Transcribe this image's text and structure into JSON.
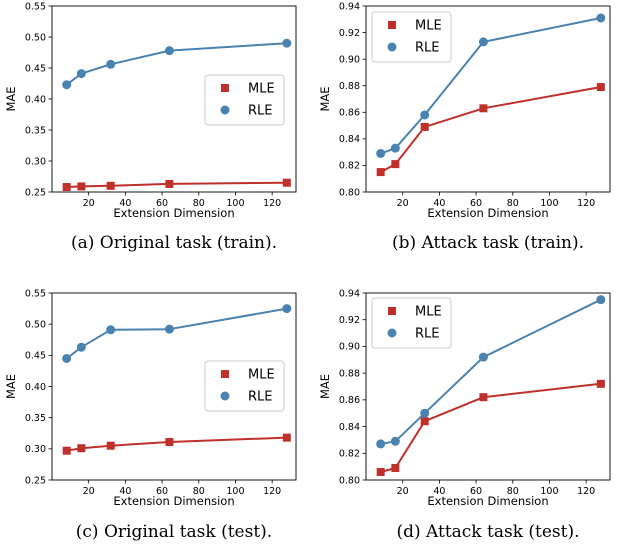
{
  "chart_data": [
    {
      "type": "line",
      "caption": "(a) Original task (train).",
      "xlabel": "Extension Dimension",
      "ylabel": "MAE",
      "xlim": [
        0,
        133
      ],
      "ylim": [
        0.25,
        0.55
      ],
      "xticks": [
        20,
        40,
        60,
        80,
        100,
        120
      ],
      "yticks": [
        0.25,
        0.3,
        0.35,
        0.4,
        0.45,
        0.5,
        0.55
      ],
      "ytick_labels": [
        "0.25",
        "0.30",
        "0.35",
        "0.40",
        "0.45",
        "0.50",
        "0.55"
      ],
      "legend_position": "center-right",
      "x": [
        8,
        16,
        32,
        64,
        128
      ],
      "series": [
        {
          "name": "MLE",
          "marker": "square",
          "color": "#c0302b",
          "values": [
            0.258,
            0.259,
            0.26,
            0.263,
            0.265
          ]
        },
        {
          "name": "RLE",
          "marker": "circle",
          "color": "#4a82b0",
          "values": [
            0.423,
            0.441,
            0.456,
            0.478,
            0.49
          ]
        }
      ]
    },
    {
      "type": "line",
      "caption": "(b) Attack task (train).",
      "xlabel": "Extension Dimension",
      "ylabel": "MAE",
      "xlim": [
        0,
        133
      ],
      "ylim": [
        0.8,
        0.94
      ],
      "xticks": [
        20,
        40,
        60,
        80,
        100,
        120
      ],
      "yticks": [
        0.8,
        0.82,
        0.84,
        0.86,
        0.88,
        0.9,
        0.92,
        0.94
      ],
      "ytick_labels": [
        "0.80",
        "0.82",
        "0.84",
        "0.86",
        "0.88",
        "0.90",
        "0.92",
        "0.94"
      ],
      "legend_position": "top-left",
      "x": [
        8,
        16,
        32,
        64,
        128
      ],
      "series": [
        {
          "name": "MLE",
          "marker": "square",
          "color": "#c0302b",
          "values": [
            0.815,
            0.821,
            0.849,
            0.863,
            0.879
          ]
        },
        {
          "name": "RLE",
          "marker": "circle",
          "color": "#4a82b0",
          "values": [
            0.829,
            0.833,
            0.858,
            0.913,
            0.931
          ]
        }
      ]
    },
    {
      "type": "line",
      "caption": "(c) Original task (test).",
      "xlabel": "Extension Dimension",
      "ylabel": "MAE",
      "xlim": [
        0,
        133
      ],
      "ylim": [
        0.25,
        0.55
      ],
      "xticks": [
        20,
        40,
        60,
        80,
        100,
        120
      ],
      "yticks": [
        0.25,
        0.3,
        0.35,
        0.4,
        0.45,
        0.5,
        0.55
      ],
      "ytick_labels": [
        "0.25",
        "0.30",
        "0.35",
        "0.40",
        "0.45",
        "0.50",
        "0.55"
      ],
      "legend_position": "center-right",
      "x": [
        8,
        16,
        32,
        64,
        128
      ],
      "series": [
        {
          "name": "MLE",
          "marker": "square",
          "color": "#c0302b",
          "values": [
            0.297,
            0.301,
            0.305,
            0.311,
            0.318
          ]
        },
        {
          "name": "RLE",
          "marker": "circle",
          "color": "#4a82b0",
          "values": [
            0.445,
            0.463,
            0.491,
            0.492,
            0.525
          ]
        }
      ]
    },
    {
      "type": "line",
      "caption": "(d) Attack task (test).",
      "xlabel": "Extension Dimension",
      "ylabel": "MAE",
      "xlim": [
        0,
        133
      ],
      "ylim": [
        0.8,
        0.94
      ],
      "xticks": [
        20,
        40,
        60,
        80,
        100,
        120
      ],
      "yticks": [
        0.8,
        0.82,
        0.84,
        0.86,
        0.88,
        0.9,
        0.92,
        0.94
      ],
      "ytick_labels": [
        "0.80",
        "0.82",
        "0.84",
        "0.86",
        "0.88",
        "0.90",
        "0.92",
        "0.94"
      ],
      "legend_position": "top-left",
      "x": [
        8,
        16,
        32,
        64,
        128
      ],
      "series": [
        {
          "name": "MLE",
          "marker": "square",
          "color": "#c0302b",
          "values": [
            0.806,
            0.809,
            0.844,
            0.862,
            0.872
          ]
        },
        {
          "name": "RLE",
          "marker": "circle",
          "color": "#4a82b0",
          "values": [
            0.827,
            0.829,
            0.85,
            0.892,
            0.935
          ]
        }
      ]
    }
  ]
}
